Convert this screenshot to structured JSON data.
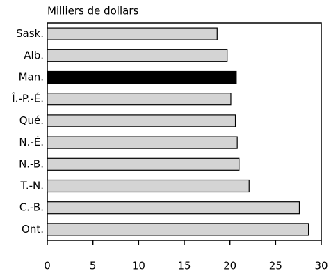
{
  "chart_data": {
    "type": "barh",
    "axis_label": "Milliers de dollars",
    "categories": [
      "Sask.",
      "Alb.",
      "Man.",
      "Î.-P.-É.",
      "Qué.",
      "N.-É.",
      "N.-B.",
      "T.-N.",
      "C.-B.",
      "Ont."
    ],
    "values": [
      18.6,
      19.7,
      20.7,
      20.1,
      20.6,
      20.8,
      21.0,
      22.1,
      27.6,
      28.6
    ],
    "colors": [
      "#d4d4d4",
      "#d4d4d4",
      "#000000",
      "#d4d4d4",
      "#d4d4d4",
      "#d4d4d4",
      "#d4d4d4",
      "#d4d4d4",
      "#d4d4d4",
      "#d4d4d4"
    ],
    "xlim": [
      0,
      30
    ],
    "xticks": [
      0,
      5,
      10,
      15,
      20,
      25,
      30
    ]
  }
}
